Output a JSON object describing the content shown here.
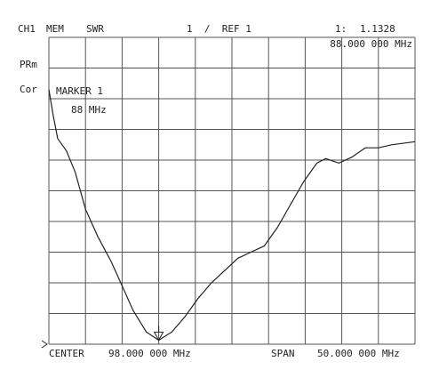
{
  "chart_data": {
    "type": "line",
    "header": {
      "channel": "CH1",
      "mode": "MEM",
      "format": "SWR",
      "scale": "1  /  REF 1",
      "marker_label": "1:"
    },
    "side": {
      "prm": "PRm",
      "cor": "Cor"
    },
    "marker": {
      "title": "MARKER 1",
      "freq_short": "88 MHz",
      "freq_long": "88.000 000 MHz",
      "x": 88,
      "value": 1.1328
    },
    "footer": {
      "center_label": "CENTER",
      "center": "98.000 000 MHz",
      "span_label": "SPAN",
      "span": "50.000 000 MHz"
    },
    "x": [
      73,
      73.6,
      74.2,
      75.4,
      76.6,
      78,
      79.7,
      81.5,
      83,
      84.5,
      86.3,
      88,
      89.8,
      91.6,
      93.4,
      95.2,
      97,
      98.8,
      100.6,
      102.4,
      104.2,
      106,
      107.8,
      109.6,
      110.8,
      112.6,
      114.4,
      116.2,
      118,
      119.8,
      123
    ],
    "values": [
      9.3,
      8.45,
      7.7,
      7.3,
      6.6,
      5.4,
      4.5,
      3.7,
      2.9,
      2.1,
      1.4,
      1.13,
      1.4,
      1.9,
      2.5,
      3.0,
      3.4,
      3.8,
      4.0,
      4.2,
      4.8,
      5.55,
      6.3,
      6.9,
      7.05,
      6.9,
      7.1,
      7.4,
      7.4,
      7.5,
      7.6
    ],
    "color": "#222222",
    "xlim": [
      73,
      123
    ],
    "ylim": [
      1,
      11
    ],
    "xticks": [
      73,
      78,
      83,
      88,
      93,
      98,
      103,
      108,
      113,
      118,
      123
    ],
    "yticks": [
      1,
      2,
      3,
      4,
      5,
      6,
      7,
      8,
      9,
      10,
      11
    ],
    "grid": true
  }
}
